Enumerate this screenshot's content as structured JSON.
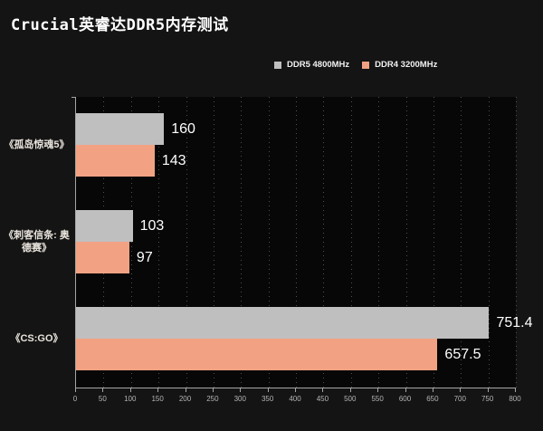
{
  "page": {
    "title": "Crucial英睿达DDR5内存测试",
    "background": "#141414"
  },
  "legend": {
    "items": [
      {
        "label": "DDR5 4800MHz",
        "color": "#c0bfbf"
      },
      {
        "label": "DDR4 3200MHz",
        "color": "#f2a283"
      }
    ]
  },
  "chart_data": {
    "type": "bar",
    "orientation": "horizontal",
    "title": "Crucial英睿达DDR5内存测试",
    "categories": [
      "《孤岛惊魂5》",
      "《刺客信条: 奥德赛》",
      "《CS:GO》"
    ],
    "series": [
      {
        "name": "DDR5 4800MHz",
        "color": "#c0bfbf",
        "values": [
          160,
          103,
          751.4
        ]
      },
      {
        "name": "DDR4 3200MHz",
        "color": "#f2a283",
        "values": [
          143,
          97,
          657.5
        ]
      }
    ],
    "xlabel": "",
    "ylabel": "",
    "xlim": [
      0,
      800
    ],
    "x_ticks": [
      0,
      50,
      100,
      150,
      200,
      250,
      300,
      350,
      400,
      450,
      500,
      550,
      600,
      650,
      700,
      750,
      800
    ],
    "grid": "vertical-dotted",
    "legend_position": "top-center",
    "value_labels": true
  },
  "colors": {
    "page_background": "#141414",
    "plot_background": "#070707",
    "axis": "#a6a6a6",
    "gridline": "#4f4f4f",
    "tick_label": "#b5b5b5",
    "category_label": "#e8e3dc",
    "value_label": "#ffffff",
    "title": "#ffffff",
    "bar_ddr5": "#c0bfbf",
    "bar_ddr4": "#f2a283"
  }
}
